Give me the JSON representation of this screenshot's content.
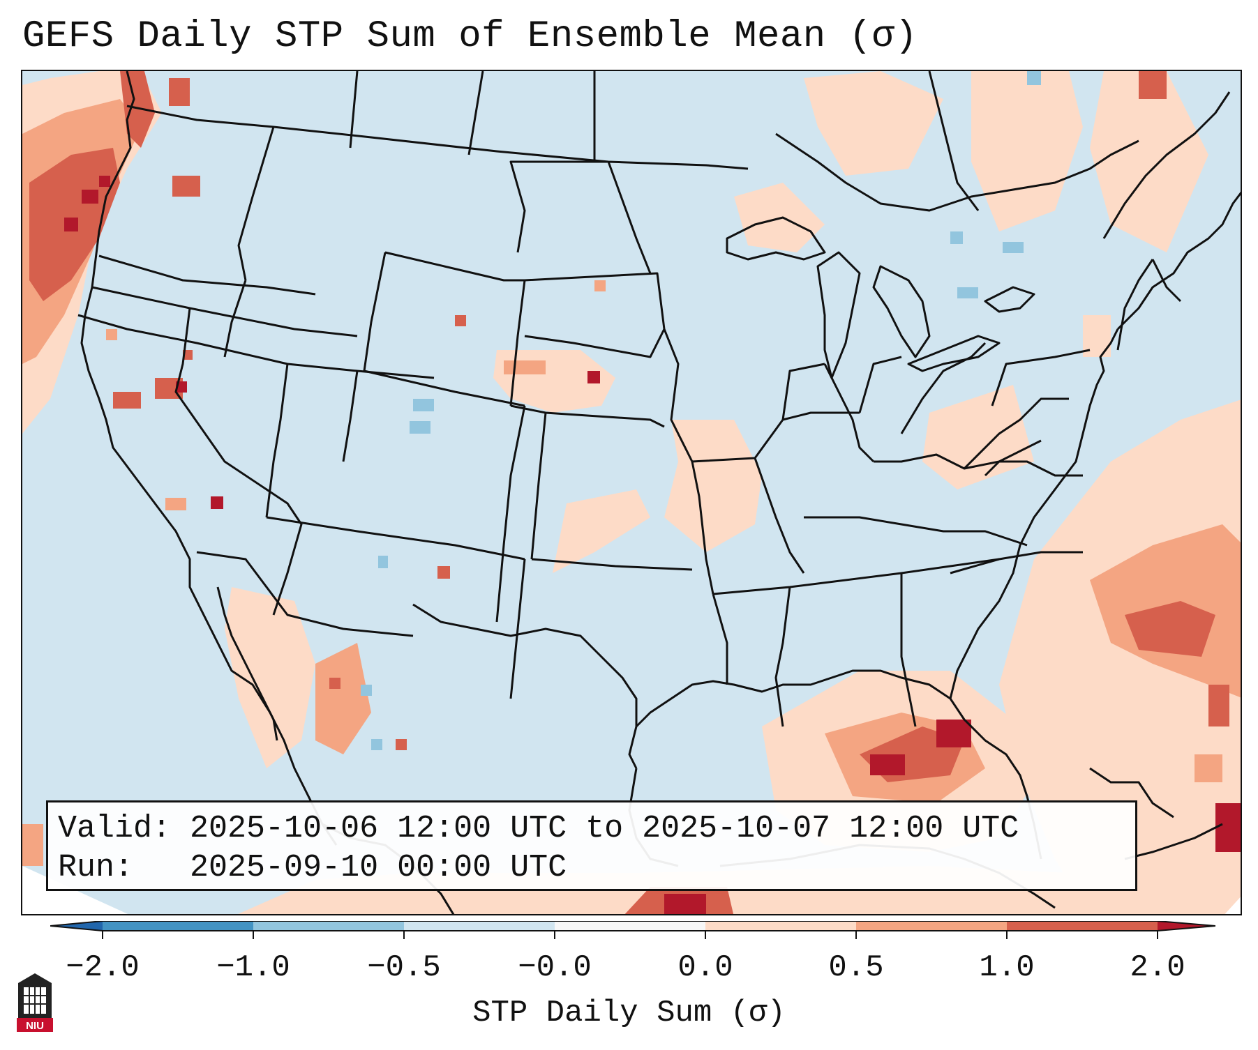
{
  "title": "GEFS Daily STP Sum of Ensemble Mean (σ)",
  "info": {
    "valid_line": "Valid: 2025-10-06 12:00 UTC to 2025-10-07 12:00 UTC",
    "run_line": "Run:   2025-09-10 00:00 UTC"
  },
  "colorbar": {
    "label": "STP Daily Sum (σ)",
    "ticks": [
      "−2.0",
      "−1.0",
      "−0.5",
      "−0.0",
      "0.0",
      "0.5",
      "1.0",
      "2.0"
    ],
    "colors": [
      "#2166ac",
      "#4393c3",
      "#92c5de",
      "#d1e5f0",
      "#f7f7f7",
      "#fddbc7",
      "#f4a582",
      "#d6604d",
      "#b2182b"
    ]
  },
  "logo": {
    "text": "NIU"
  }
}
